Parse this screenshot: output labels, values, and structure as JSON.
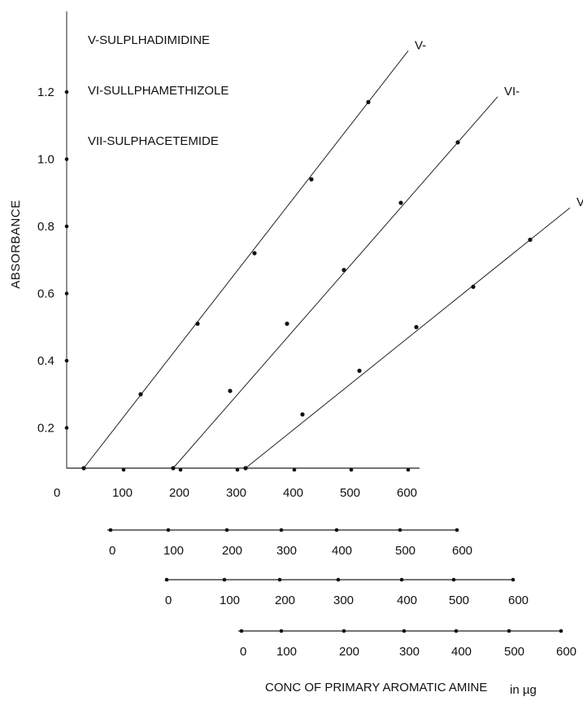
{
  "chart_data": {
    "type": "line",
    "ylabel": "ABSORBANCE",
    "xlabel": "CONC OF PRIMARY AROMATIC  AMINE",
    "xunit": "in µg",
    "legend": [
      "V-SULPLHADIMIDINE",
      "VI-SULLPHAMETHIZOLE",
      "VII-SULPHACETEMIDE"
    ],
    "y_ticks": [
      "0.2",
      "0.4",
      "0.6",
      "0.8",
      "1.0",
      "1.2"
    ],
    "y_tick_values": [
      0.2,
      0.4,
      0.6,
      0.8,
      1.0,
      1.2
    ],
    "ylim": [
      0.08,
      1.4
    ],
    "main_axis_ticks": [
      "0",
      "100",
      "200",
      "300",
      "400",
      "500",
      "600"
    ],
    "sub_axes": [
      {
        "ticks": [
          "0",
          "100",
          "200",
          "300",
          "400",
          "500",
          "600"
        ]
      },
      {
        "ticks": [
          "0",
          "100",
          "200",
          "300",
          "400",
          "500",
          "600"
        ]
      },
      {
        "ticks": [
          "0",
          "100",
          "200",
          "300",
          "400",
          "500",
          "600"
        ]
      }
    ],
    "series": [
      {
        "name": "V",
        "label": "V-",
        "x": [
          100,
          200,
          300,
          400,
          500,
          600
        ],
        "y": [
          0.08,
          0.3,
          0.51,
          0.72,
          0.94,
          1.17
        ]
      },
      {
        "name": "VI",
        "label": "VI-",
        "x": [
          200,
          300,
          400,
          500,
          600,
          700
        ],
        "y": [
          0.08,
          0.31,
          0.51,
          0.67,
          0.87,
          1.05
        ]
      },
      {
        "name": "VII",
        "label": "VII",
        "x": [
          300,
          400,
          500,
          600,
          700,
          800
        ],
        "y": [
          0.08,
          0.24,
          0.37,
          0.5,
          0.62,
          0.76
        ]
      }
    ]
  }
}
